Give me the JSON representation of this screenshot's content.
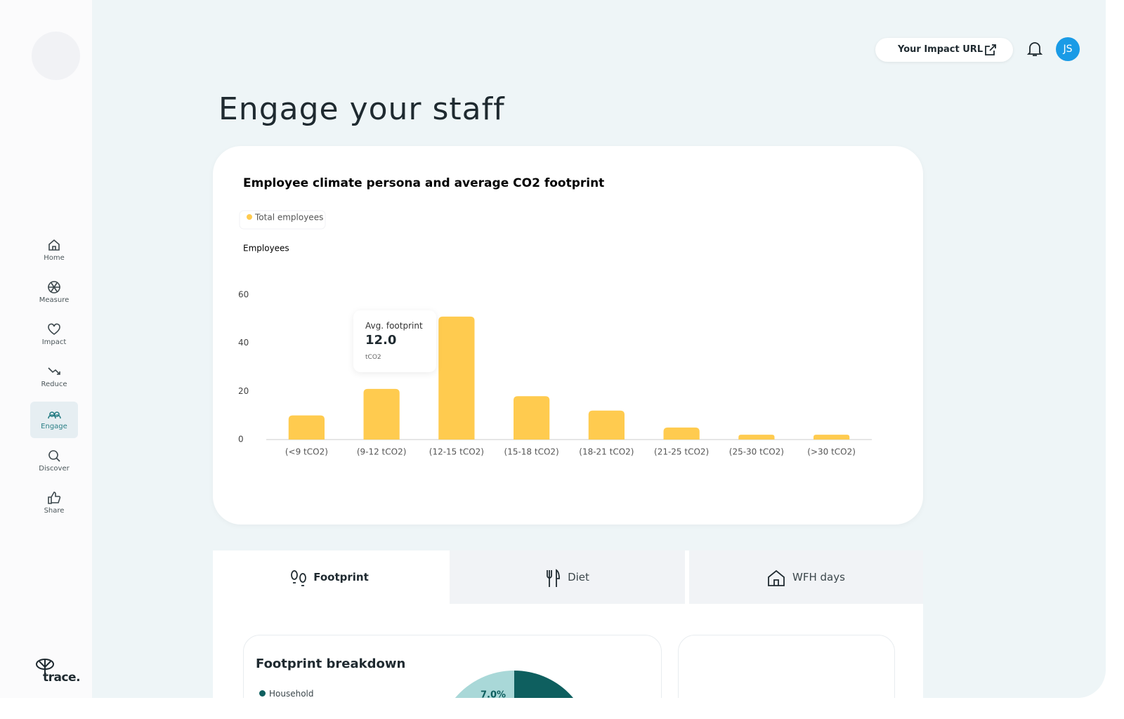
{
  "sidebar": {
    "nav": [
      "Home",
      "Measure",
      "Impact",
      "Reduce",
      "Engage",
      "Discover",
      "Share"
    ],
    "logo": "trace."
  },
  "header": {
    "impact_url": "Your Impact URL",
    "avatar": "JS"
  },
  "page_title": "Engage your staff",
  "chart_data": {
    "type": "bar",
    "title": "Employee climate persona and average CO2 footprint",
    "y_label": "Employees",
    "categories": [
      "(<9 tCO2)",
      "(9-12 tCO2)",
      "(12-15 tCO2)",
      "(15-18 tCO2)",
      "(18-21 tCO2)",
      "(21-25 tCO2)",
      "(25-30 tCO2)",
      "(>30 tCO2)"
    ],
    "series": [
      {
        "name": "Total employees",
        "color": "#ffcb4f",
        "values": [
          10,
          21,
          51,
          18,
          12,
          5,
          2,
          2
        ]
      }
    ],
    "ylim": [
      0,
      60
    ],
    "yticks": [
      0,
      20,
      40,
      60
    ],
    "grid": false,
    "tooltip": {
      "title": "Avg. footprint",
      "value": "12.0",
      "unit": "tCO2"
    }
  },
  "tabs": [
    "Footprint",
    "Diet",
    "WFH days"
  ],
  "breakdown": {
    "title": "Footprint breakdown",
    "legend": [
      "Household"
    ],
    "pie_label": "7.0%"
  }
}
